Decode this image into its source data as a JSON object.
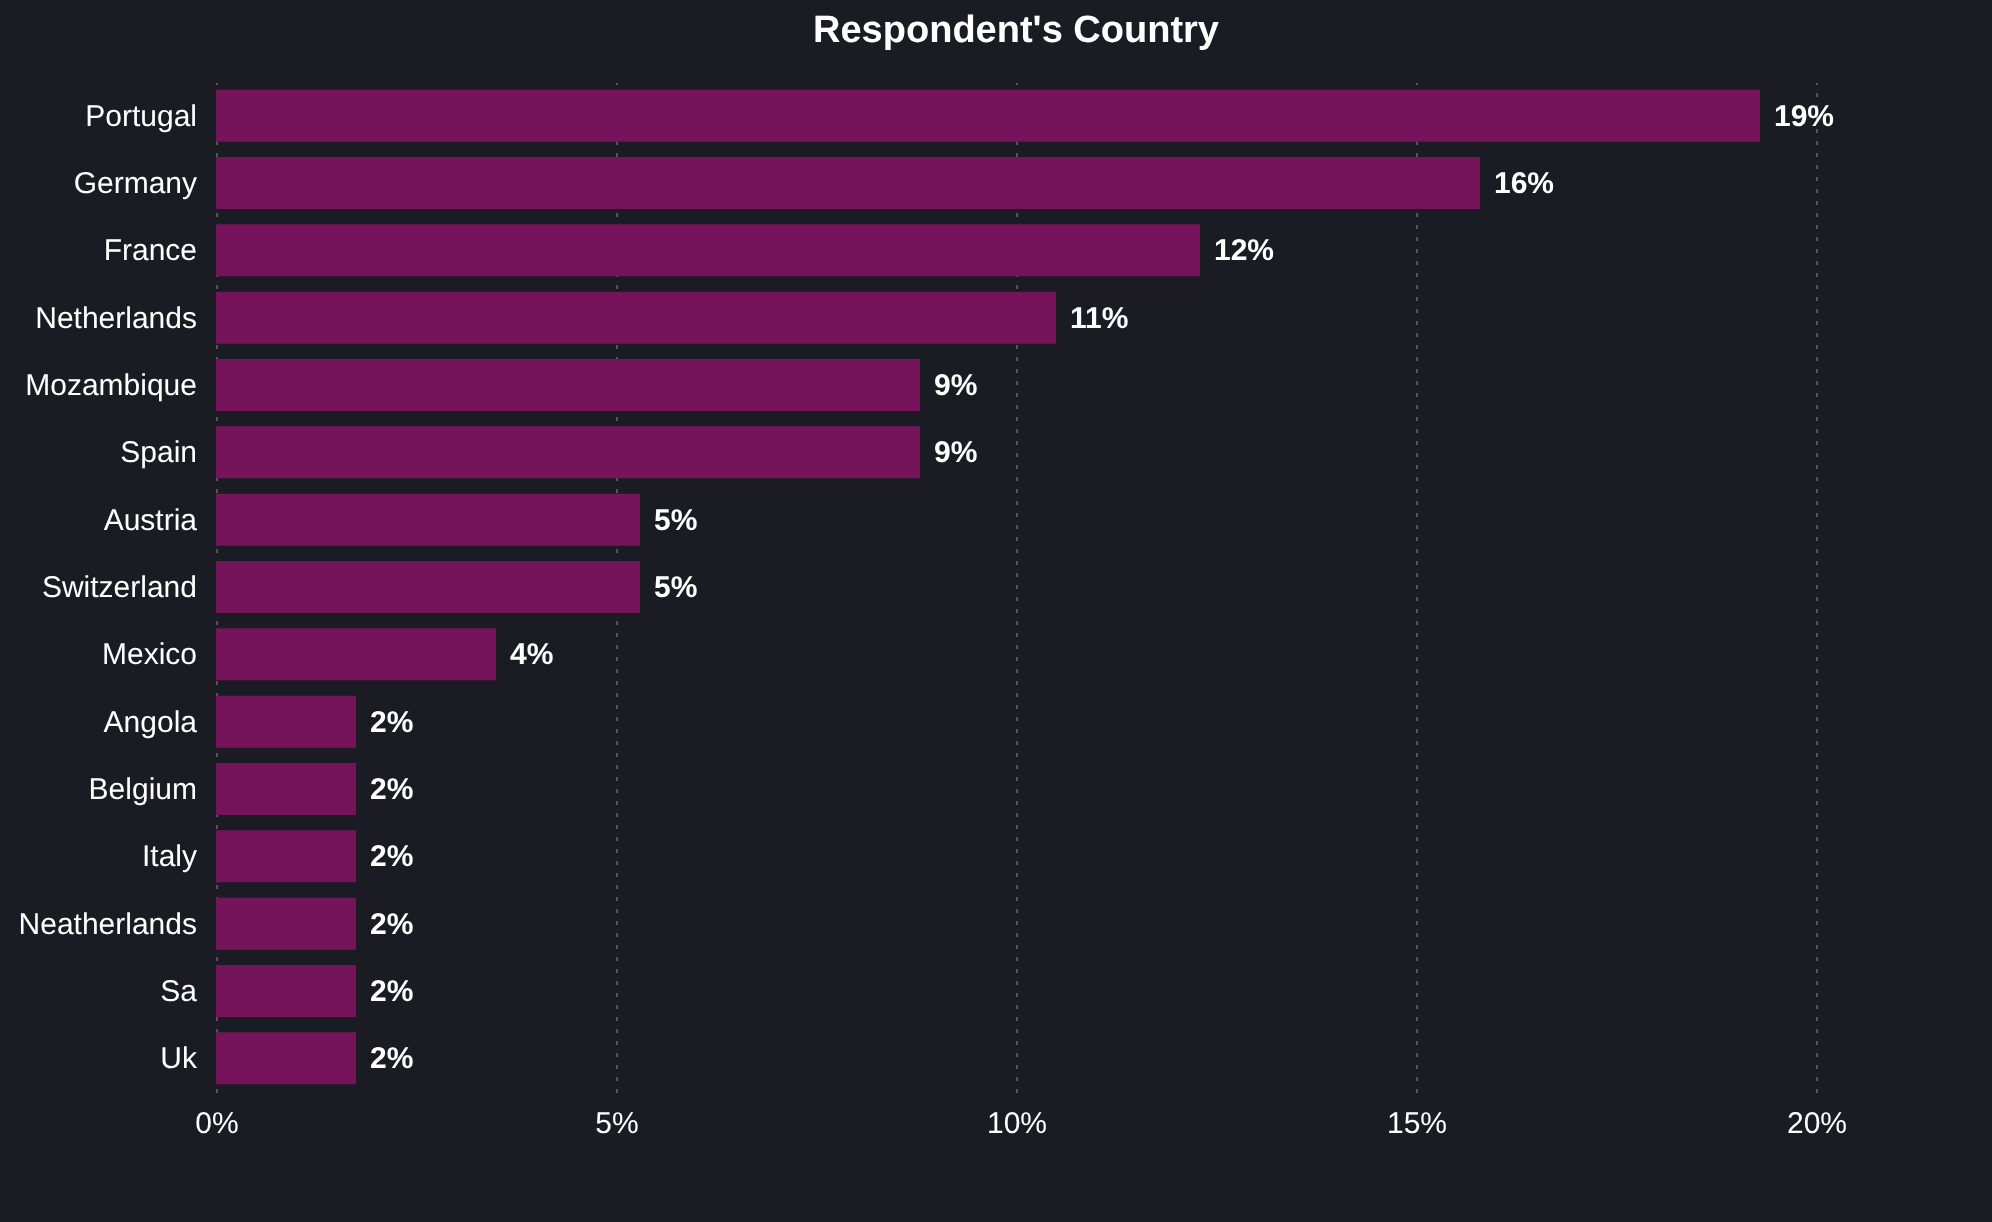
{
  "chart_data": {
    "type": "bar",
    "orientation": "horizontal",
    "title": "Respondent's Country",
    "categories": [
      "Portugal",
      "Germany",
      "France",
      "Netherlands",
      "Mozambique",
      "Spain",
      "Austria",
      "Switzerland",
      "Mexico",
      "Angola",
      "Belgium",
      "Italy",
      "Neatherlands",
      "Sa",
      "Uk"
    ],
    "values": [
      19.3,
      15.8,
      12.3,
      10.5,
      8.8,
      8.8,
      5.3,
      5.3,
      3.5,
      1.75,
      1.75,
      1.75,
      1.75,
      1.75,
      1.75
    ],
    "value_labels": [
      "19%",
      "16%",
      "12%",
      "11%",
      "9%",
      "9%",
      "5%",
      "5%",
      "4%",
      "2%",
      "2%",
      "2%",
      "2%",
      "2%",
      "2%"
    ],
    "color": "#75145a",
    "xlim": [
      0,
      20
    ],
    "xticks": [
      {
        "value": 0,
        "label": "0%"
      },
      {
        "value": 5,
        "label": "5%"
      },
      {
        "value": 10,
        "label": "10%"
      },
      {
        "value": 15,
        "label": "15%"
      },
      {
        "value": 20,
        "label": "20%"
      }
    ],
    "grid": "x"
  }
}
